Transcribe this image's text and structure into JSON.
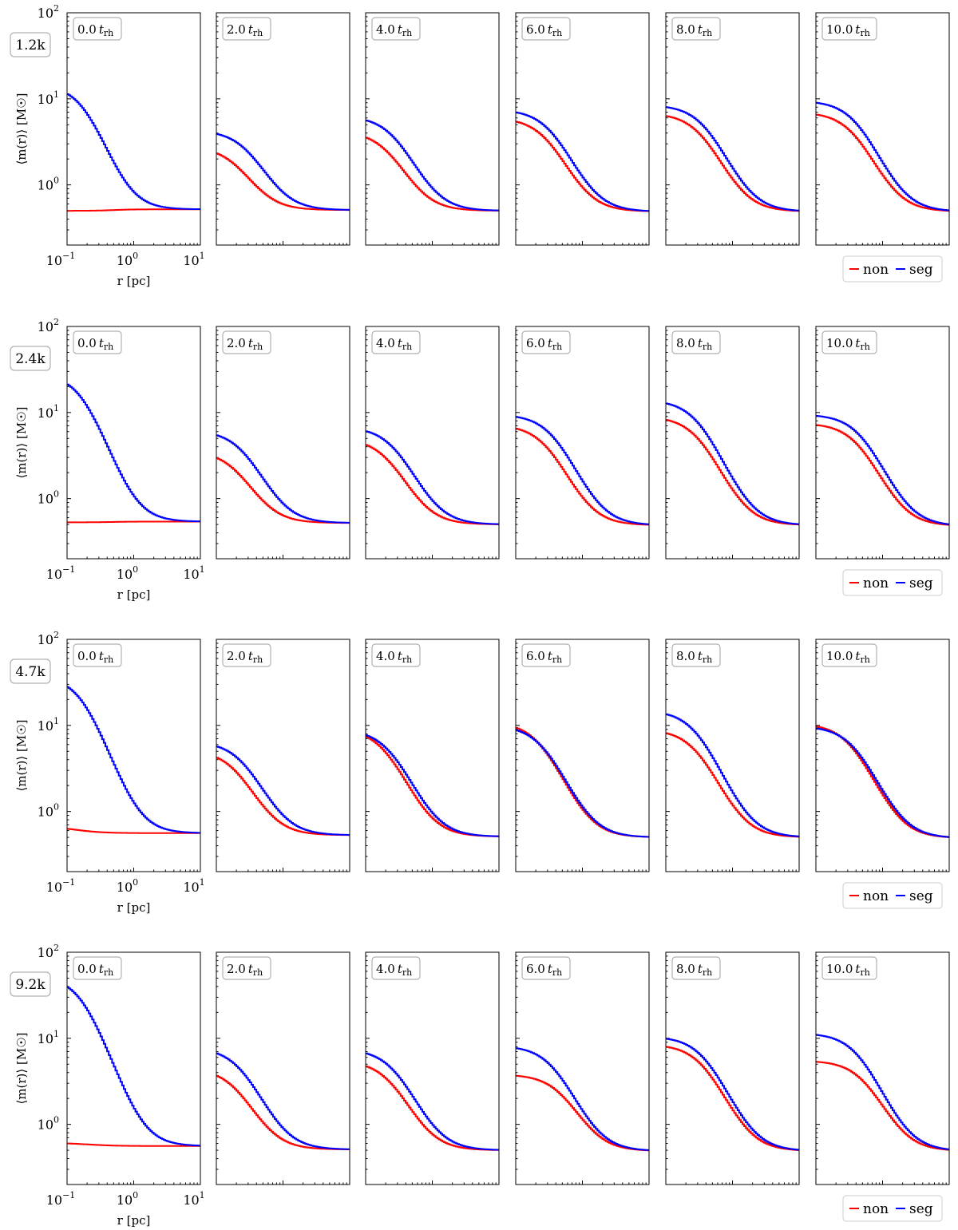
{
  "chart_data": {
    "type": "line",
    "layout": "grid 4 rows x 6 columns",
    "xscale": "log",
    "yscale": "log",
    "xlim": [
      0.1,
      10
    ],
    "ylim": [
      0.2,
      100
    ],
    "xlabel": "r [pc]",
    "ylabel": "⟨m(r)⟩ [M☉]",
    "xticks": [
      {
        "base": "10",
        "exp": "−1"
      },
      {
        "base": "10",
        "exp": "0"
      },
      {
        "base": "10",
        "exp": "1"
      }
    ],
    "yticks": [
      {
        "value": 1,
        "base": "10",
        "exp": "0"
      },
      {
        "value": 10,
        "base": "10",
        "exp": "1"
      },
      {
        "value": 100,
        "base": "10",
        "exp": "2"
      }
    ],
    "legend": {
      "location": "lower-right",
      "entries": [
        {
          "name": "non",
          "color": "#ff0000"
        },
        {
          "name": "seg",
          "color": "#0000ff"
        }
      ]
    },
    "time_labels": [
      {
        "num": "0.0",
        "t": "t",
        "sub": "rh"
      },
      {
        "num": "2.0",
        "t": "t",
        "sub": "rh"
      },
      {
        "num": "4.0",
        "t": "t",
        "sub": "rh"
      },
      {
        "num": "6.0",
        "t": "t",
        "sub": "rh"
      },
      {
        "num": "8.0",
        "t": "t",
        "sub": "rh"
      },
      {
        "num": "10.0",
        "t": "t",
        "sub": "rh"
      }
    ],
    "rows": [
      {
        "label": "1.2k",
        "panels": [
          {
            "non": {
              "v0": 0.5,
              "vinf": 0.52,
              "s": 0.5,
              "p": 3
            },
            "seg": {
              "v0": 14.5,
              "vinf": 0.52,
              "s": 0.18,
              "p": 2.2
            }
          },
          {
            "non": {
              "v0": 2.8,
              "vinf": 0.51,
              "s": 0.2,
              "p": 2
            },
            "seg": {
              "v0": 4.3,
              "vinf": 0.51,
              "s": 0.3,
              "p": 2
            }
          },
          {
            "non": {
              "v0": 4.2,
              "vinf": 0.5,
              "s": 0.22,
              "p": 2
            },
            "seg": {
              "v0": 6.3,
              "vinf": 0.5,
              "s": 0.28,
              "p": 2
            }
          },
          {
            "non": {
              "v0": 6.0,
              "vinf": 0.49,
              "s": 0.3,
              "p": 2
            },
            "seg": {
              "v0": 7.5,
              "vinf": 0.49,
              "s": 0.35,
              "p": 2
            }
          },
          {
            "non": {
              "v0": 6.8,
              "vinf": 0.49,
              "s": 0.35,
              "p": 2
            },
            "seg": {
              "v0": 8.5,
              "vinf": 0.49,
              "s": 0.4,
              "p": 2
            }
          },
          {
            "non": {
              "v0": 7.0,
              "vinf": 0.49,
              "s": 0.38,
              "p": 2
            },
            "seg": {
              "v0": 9.5,
              "vinf": 0.49,
              "s": 0.42,
              "p": 2
            }
          }
        ]
      },
      {
        "label": "2.4k",
        "panels": [
          {
            "non": {
              "v0": 0.53,
              "vinf": 0.54,
              "s": 0.5,
              "p": 3
            },
            "seg": {
              "v0": 28,
              "vinf": 0.54,
              "s": 0.17,
              "p": 2.2
            }
          },
          {
            "non": {
              "v0": 3.6,
              "vinf": 0.52,
              "s": 0.2,
              "p": 2
            },
            "seg": {
              "v0": 6.2,
              "vinf": 0.52,
              "s": 0.26,
              "p": 2
            }
          },
          {
            "non": {
              "v0": 5.0,
              "vinf": 0.5,
              "s": 0.22,
              "p": 2
            },
            "seg": {
              "v0": 6.8,
              "vinf": 0.5,
              "s": 0.28,
              "p": 2
            }
          },
          {
            "non": {
              "v0": 7.2,
              "vinf": 0.49,
              "s": 0.3,
              "p": 2
            },
            "seg": {
              "v0": 9.5,
              "vinf": 0.49,
              "s": 0.38,
              "p": 2
            }
          },
          {
            "non": {
              "v0": 9.0,
              "vinf": 0.49,
              "s": 0.32,
              "p": 2
            },
            "seg": {
              "v0": 14,
              "vinf": 0.49,
              "s": 0.32,
              "p": 2
            }
          },
          {
            "non": {
              "v0": 7.5,
              "vinf": 0.48,
              "s": 0.45,
              "p": 2
            },
            "seg": {
              "v0": 9.5,
              "vinf": 0.48,
              "s": 0.5,
              "p": 2
            }
          }
        ]
      },
      {
        "label": "4.7k",
        "panels": [
          {
            "non": {
              "v0": 0.68,
              "vinf": 0.56,
              "s": 0.12,
              "p": 2
            },
            "seg": {
              "v0": 37,
              "vinf": 0.56,
              "s": 0.17,
              "p": 2.2
            }
          },
          {
            "non": {
              "v0": 5.2,
              "vinf": 0.53,
              "s": 0.2,
              "p": 2
            },
            "seg": {
              "v0": 6.5,
              "vinf": 0.53,
              "s": 0.26,
              "p": 2
            }
          },
          {
            "non": {
              "v0": 9.2,
              "vinf": 0.51,
              "s": 0.2,
              "p": 2
            },
            "seg": {
              "v0": 9.0,
              "vinf": 0.51,
              "s": 0.24,
              "p": 2
            }
          },
          {
            "non": {
              "v0": 11,
              "vinf": 0.5,
              "s": 0.24,
              "p": 2
            },
            "seg": {
              "v0": 10,
              "vinf": 0.5,
              "s": 0.27,
              "p": 2
            }
          },
          {
            "non": {
              "v0": 9.0,
              "vinf": 0.5,
              "s": 0.3,
              "p": 2
            },
            "seg": {
              "v0": 15,
              "vinf": 0.5,
              "s": 0.3,
              "p": 2
            }
          },
          {
            "non": {
              "v0": 10.5,
              "vinf": 0.49,
              "s": 0.35,
              "p": 2
            },
            "seg": {
              "v0": 9.8,
              "vinf": 0.49,
              "s": 0.4,
              "p": 2
            }
          }
        ]
      },
      {
        "label": "9.2k",
        "panels": [
          {
            "non": {
              "v0": 0.61,
              "vinf": 0.56,
              "s": 0.2,
              "p": 2
            },
            "seg": {
              "v0": 52,
              "vinf": 0.56,
              "s": 0.17,
              "p": 2.2
            }
          },
          {
            "non": {
              "v0": 4.5,
              "vinf": 0.51,
              "s": 0.2,
              "p": 2
            },
            "seg": {
              "v0": 7.8,
              "vinf": 0.51,
              "s": 0.24,
              "p": 2
            }
          },
          {
            "non": {
              "v0": 5.5,
              "vinf": 0.5,
              "s": 0.24,
              "p": 2
            },
            "seg": {
              "v0": 7.5,
              "vinf": 0.5,
              "s": 0.28,
              "p": 2
            }
          },
          {
            "non": {
              "v0": 3.8,
              "vinf": 0.49,
              "s": 0.5,
              "p": 2
            },
            "seg": {
              "v0": 8.2,
              "vinf": 0.49,
              "s": 0.38,
              "p": 2
            }
          },
          {
            "non": {
              "v0": 8.5,
              "vinf": 0.49,
              "s": 0.38,
              "p": 2
            },
            "seg": {
              "v0": 10.5,
              "vinf": 0.49,
              "s": 0.4,
              "p": 2
            }
          },
          {
            "non": {
              "v0": 5.5,
              "vinf": 0.49,
              "s": 0.55,
              "p": 2
            },
            "seg": {
              "v0": 11.5,
              "vinf": 0.49,
              "s": 0.45,
              "p": 2
            }
          }
        ]
      }
    ]
  }
}
